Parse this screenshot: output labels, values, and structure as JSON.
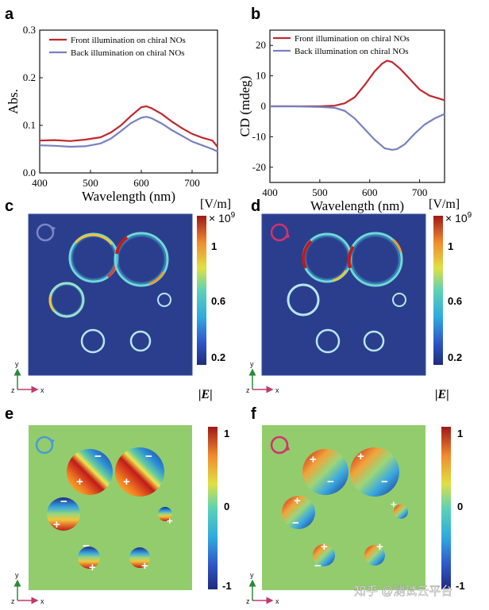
{
  "chart_data": [
    {
      "panel": "a",
      "type": "line",
      "xlabel": "Wavelength (nm)",
      "ylabel": "Abs.",
      "xlim": [
        400,
        750
      ],
      "ylim": [
        0.0,
        0.3
      ],
      "xticks": [
        "400",
        "500",
        "600",
        "700"
      ],
      "yticks": [
        "0.0",
        "0.1",
        "0.2",
        "0.3"
      ],
      "legend": "top-left",
      "series": [
        {
          "name": "Front illumination on chiral NOs",
          "color": "#c0282d",
          "x": [
            400,
            430,
            460,
            490,
            520,
            540,
            560,
            580,
            600,
            610,
            620,
            640,
            660,
            680,
            700,
            720,
            740,
            750
          ],
          "y": [
            0.068,
            0.069,
            0.067,
            0.07,
            0.075,
            0.085,
            0.1,
            0.12,
            0.138,
            0.14,
            0.136,
            0.124,
            0.108,
            0.094,
            0.082,
            0.074,
            0.068,
            0.055
          ]
        },
        {
          "name": "Back illumination on chiral NOs",
          "color": "#7880c0",
          "x": [
            400,
            430,
            460,
            490,
            520,
            540,
            560,
            580,
            600,
            610,
            620,
            640,
            660,
            680,
            700,
            720,
            740,
            750
          ],
          "y": [
            0.058,
            0.057,
            0.055,
            0.056,
            0.062,
            0.072,
            0.088,
            0.105,
            0.116,
            0.118,
            0.115,
            0.104,
            0.09,
            0.078,
            0.066,
            0.058,
            0.05,
            0.045
          ]
        }
      ]
    },
    {
      "panel": "b",
      "type": "line",
      "xlabel": "Wavelength (nm)",
      "ylabel": "CD (mdeg)",
      "xlim": [
        400,
        750
      ],
      "ylim": [
        -25,
        25
      ],
      "xticks": [
        "400",
        "500",
        "600",
        "700"
      ],
      "yticks": [
        "-20",
        "-10",
        "0",
        "10",
        "20"
      ],
      "legend": "top",
      "series": [
        {
          "name": "Front illumination on chiral NOs",
          "color": "#c0282d",
          "x": [
            400,
            450,
            500,
            530,
            550,
            570,
            590,
            610,
            625,
            635,
            645,
            660,
            680,
            700,
            720,
            740,
            750
          ],
          "y": [
            0,
            0,
            0,
            0.2,
            1,
            3,
            7,
            11.5,
            14,
            15,
            14.5,
            12.5,
            9,
            5.5,
            3.5,
            2.5,
            2
          ]
        },
        {
          "name": "Back illumination on chiral NOs",
          "color": "#7880c0",
          "x": [
            400,
            450,
            500,
            530,
            550,
            570,
            590,
            610,
            630,
            645,
            655,
            670,
            690,
            710,
            730,
            750
          ],
          "y": [
            0,
            0,
            -0.2,
            -0.5,
            -1.5,
            -4,
            -7.5,
            -11,
            -13.8,
            -14.3,
            -14,
            -12.5,
            -9,
            -6,
            -4,
            -2.5
          ]
        }
      ]
    }
  ],
  "panels": {
    "a": "a",
    "b": "b",
    "c": "c",
    "d": "d",
    "e": "e",
    "f": "f"
  },
  "colorbar_cd": {
    "unit": "[V/m]",
    "exponent": "× 10",
    "power": "9",
    "ticks": [
      "1",
      "0.6",
      "0.2"
    ],
    "quantity": "|E|"
  },
  "colorbar_ef": {
    "ticks": [
      "1",
      "0",
      "-1"
    ]
  },
  "axes_labels": {
    "y": "y",
    "z": "z",
    "x": "x"
  },
  "charges": {
    "plus": "+",
    "minus": "−"
  },
  "watermark": "知乎 @测试云平台",
  "colors": {
    "field_bg": "#2b3e8e",
    "phase_bg": "#93cc6c",
    "front": "#c0282d",
    "back": "#7880c0",
    "lcp_arrow": "#7b86c4",
    "rcp_arrow": "#d2326e",
    "lcp_arrow_ef": "#4b9ad8"
  }
}
